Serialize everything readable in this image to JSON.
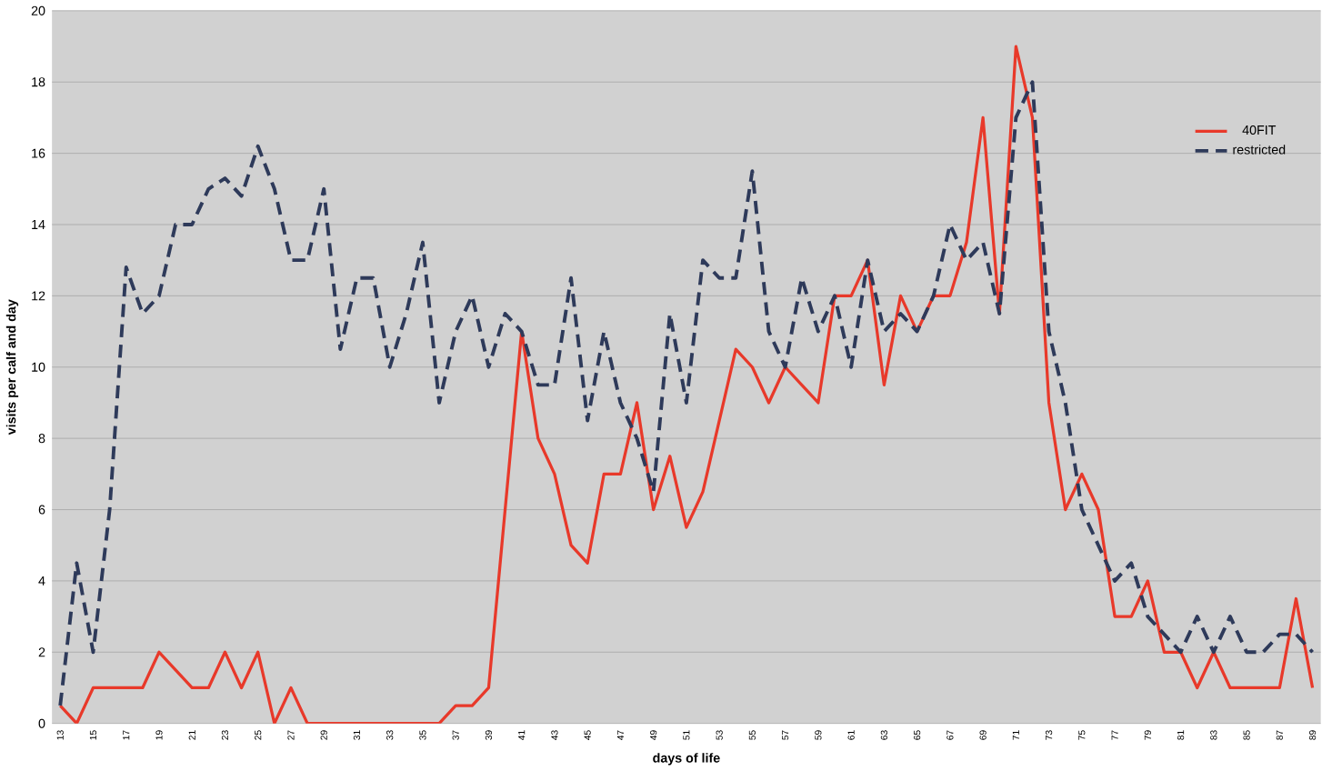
{
  "chart_data": {
    "type": "line",
    "xlabel": "days of life",
    "ylabel": "visits per calf and day",
    "x": [
      13,
      14,
      15,
      16,
      17,
      18,
      19,
      20,
      21,
      22,
      23,
      24,
      25,
      26,
      27,
      28,
      29,
      30,
      31,
      32,
      33,
      34,
      35,
      36,
      37,
      38,
      39,
      40,
      41,
      42,
      43,
      44,
      45,
      46,
      47,
      48,
      49,
      50,
      51,
      52,
      53,
      54,
      55,
      56,
      57,
      58,
      59,
      60,
      61,
      62,
      63,
      64,
      65,
      66,
      67,
      68,
      69,
      70,
      71,
      72,
      73,
      74,
      75,
      76,
      77,
      78,
      79,
      80,
      81,
      82,
      83,
      84,
      85,
      86,
      87,
      88,
      89
    ],
    "series": [
      {
        "name": "40FIT",
        "color": "#e8392a",
        "line_style": "solid",
        "values": [
          0.5,
          0,
          1,
          1,
          1,
          1,
          2,
          1.5,
          1,
          1,
          2,
          1,
          2,
          0,
          1,
          0,
          0,
          0,
          0,
          0,
          0,
          0,
          0,
          0,
          0.5,
          0.5,
          1,
          6,
          11,
          8,
          7,
          5,
          4.5,
          7,
          7,
          9,
          6,
          7.5,
          5.5,
          6.5,
          8.5,
          10.5,
          10,
          9,
          10,
          9.5,
          9,
          12,
          12,
          13,
          9.5,
          12,
          11,
          12,
          12,
          13.5,
          17,
          11.5,
          19,
          17,
          9,
          6,
          7,
          6,
          3,
          3,
          4,
          2,
          2,
          1,
          2,
          1,
          1,
          1,
          1,
          3.5,
          1
        ]
      },
      {
        "name": "restricted",
        "color": "#2e3a5a",
        "line_style": "dashed",
        "values": [
          0.5,
          4.5,
          2,
          6,
          12.8,
          11.5,
          12,
          14,
          14,
          15,
          15.3,
          14.8,
          16.2,
          15,
          13,
          13,
          15,
          10.5,
          12.5,
          12.5,
          10,
          11.5,
          13.5,
          9,
          11,
          12,
          10,
          11.5,
          11,
          9.5,
          9.5,
          12.5,
          8.5,
          11,
          9,
          8,
          6.5,
          11.5,
          9,
          13,
          12.5,
          12.5,
          15.5,
          11,
          10,
          12.5,
          11,
          12,
          10,
          13,
          11,
          11.5,
          11,
          12,
          14,
          13,
          13.5,
          11.5,
          17,
          18,
          11,
          9,
          6,
          5,
          4,
          4.5,
          3,
          2.5,
          2,
          3,
          2,
          3,
          2,
          2,
          2.5,
          2.5,
          2
        ]
      }
    ],
    "xlim": [
      12.5,
      89.5
    ],
    "xticks": [
      13,
      15,
      17,
      19,
      21,
      23,
      25,
      27,
      29,
      31,
      33,
      35,
      37,
      39,
      41,
      43,
      45,
      47,
      49,
      51,
      53,
      55,
      57,
      59,
      61,
      63,
      65,
      67,
      69,
      71,
      73,
      75,
      77,
      79,
      81,
      83,
      85,
      87,
      89
    ],
    "ylim": [
      0,
      20
    ],
    "yticks": [
      0,
      2,
      4,
      6,
      8,
      10,
      12,
      14,
      16,
      18,
      20
    ],
    "grid": "y",
    "legend": "top right",
    "marker": "none"
  }
}
